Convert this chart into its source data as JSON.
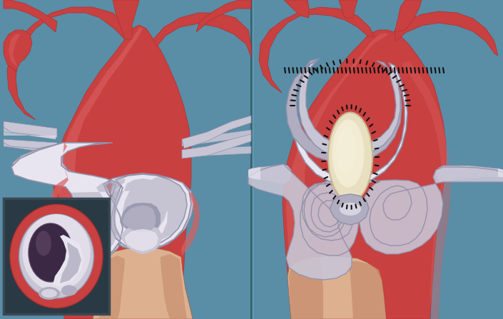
{
  "bg": "#5a8da6",
  "bg2": "#4e7f96",
  "aorta_main": "#c84040",
  "aorta_mid": "#b03030",
  "aorta_light": "#d86060",
  "aorta_highlight": "#e89090",
  "tissue_tan": "#c89070",
  "tissue_light": "#ddb090",
  "tissue_dark": "#a06040",
  "white_struct": "#c8c5d5",
  "white_light": "#e8e5f0",
  "white_dark": "#9090a8",
  "white_mid": "#b0adc0",
  "inset_bg": "#2a3a45",
  "dark_lumen": "#3a2845",
  "dark_lumen2": "#5a4060",
  "cream_patch": "#e8dfc0",
  "cream_light": "#f5f0da",
  "cream_dark": "#c8b890",
  "suture": "#101010",
  "divider": "#3a6070",
  "figure_width": 7.05,
  "figure_height": 4.47,
  "dpi": 100
}
